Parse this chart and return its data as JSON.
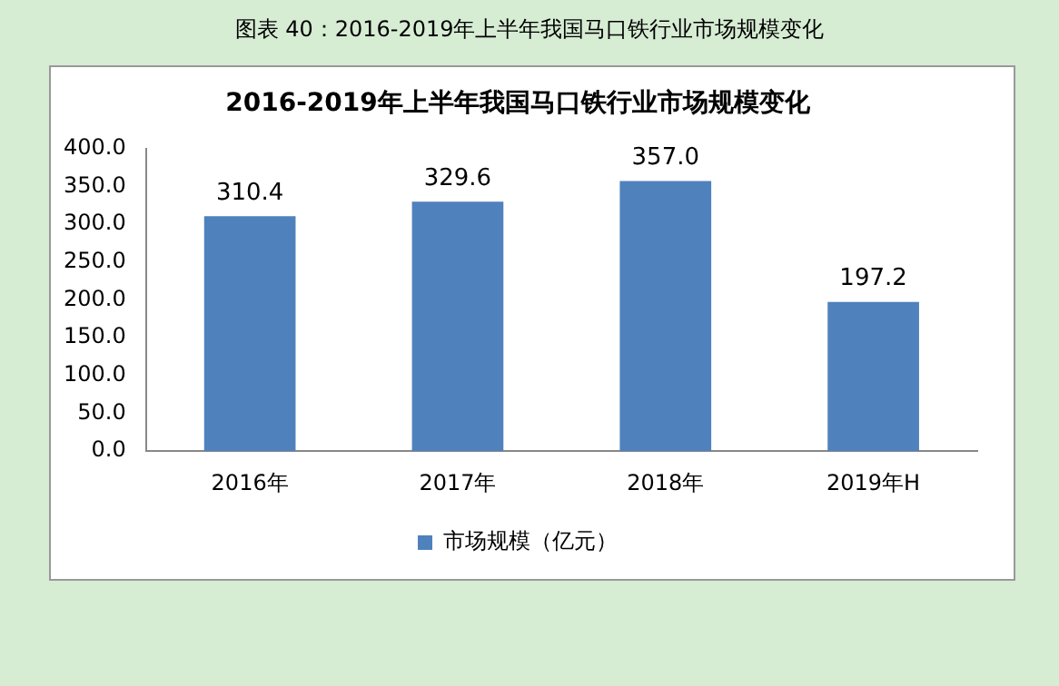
{
  "chart_data": {
    "type": "bar",
    "title": "图表 40：2016-2019年上半年我国马口铁行业市场规模变化",
    "subtitle": "2016-2019年上半年我国马口铁行业市场规模变化",
    "categories": [
      "2016年",
      "2017年",
      "2018年",
      "2019年H"
    ],
    "series": [
      {
        "name": "市场规模（亿元）",
        "color": "#4f81bd",
        "values": [
          310.4,
          329.6,
          357.0,
          197.2
        ]
      }
    ],
    "value_labels": [
      "310.4",
      "329.6",
      "357.0",
      "197.2"
    ],
    "ylim": [
      0,
      400
    ],
    "yticks": [
      {
        "value": 0,
        "label": "0.0"
      },
      {
        "value": 50,
        "label": "50.0"
      },
      {
        "value": 100,
        "label": "100.0"
      },
      {
        "value": 150,
        "label": "150.0"
      },
      {
        "value": 200,
        "label": "200.0"
      },
      {
        "value": 250,
        "label": "250.0"
      },
      {
        "value": 300,
        "label": "300.0"
      },
      {
        "value": 350,
        "label": "350.0"
      },
      {
        "value": 400,
        "label": "400.0"
      }
    ],
    "grid": false,
    "legend": "bottom"
  }
}
